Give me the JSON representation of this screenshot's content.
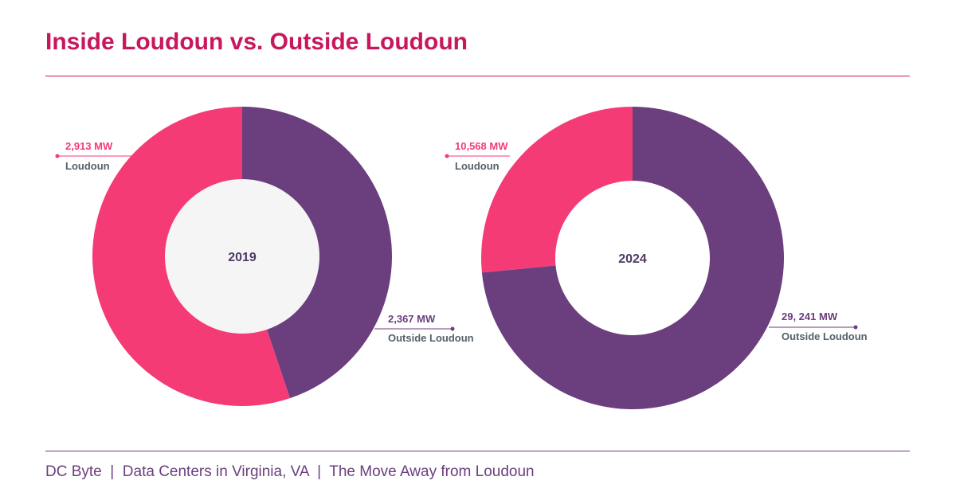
{
  "title": "Inside Loudoun vs. Outside Loudoun",
  "footer": "DC Byte  |  Data Centers in Virginia, VA  |  The Move Away from Loudoun",
  "colors": {
    "loudoun": "#f43b76",
    "outside": "#6b3e7e",
    "title": "#c8175d"
  },
  "chart_data": [
    {
      "type": "pie",
      "center_label": "2019",
      "slices": [
        {
          "name": "Loudoun",
          "value": 2913,
          "value_label": "2,913 MW",
          "color": "#f43b76"
        },
        {
          "name": "Outside Loudoun",
          "value": 2367,
          "value_label": "2,367 MW",
          "color": "#6b3e7e"
        }
      ]
    },
    {
      "type": "pie",
      "center_label": "2024",
      "slices": [
        {
          "name": "Loudoun",
          "value": 10568,
          "value_label": "10,568 MW",
          "color": "#f43b76"
        },
        {
          "name": "Outside Loudoun",
          "value": 29241,
          "value_label": "29, 241 MW",
          "color": "#6b3e7e"
        }
      ]
    }
  ]
}
